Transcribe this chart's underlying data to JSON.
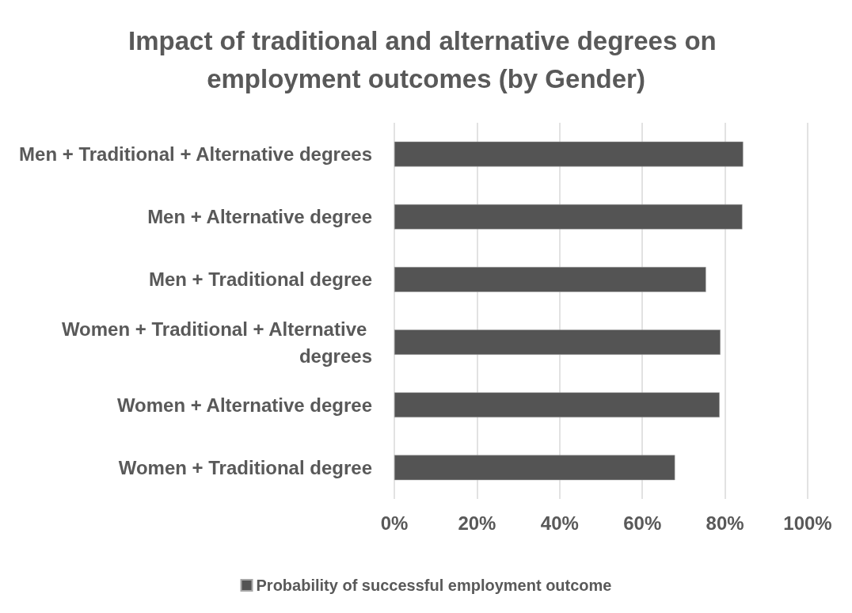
{
  "chart_data": {
    "type": "bar",
    "orientation": "horizontal",
    "title": "Impact of traditional and alternative degrees on employment outcomes (by Gender)",
    "categories": [
      "Men + Traditional + Alternative degrees",
      "Men + Alternative degree",
      "Men + Traditional degree",
      "Women + Traditional + Alternative degrees",
      "Women + Alternative degree",
      "Women + Traditional degree"
    ],
    "series": [
      {
        "name": "Probability of successful employment outcome",
        "color": "#545454",
        "values": [
          84.4,
          84.2,
          75.4,
          78.9,
          78.7,
          67.9
        ]
      }
    ],
    "xlim": [
      0,
      100
    ],
    "xticks": [
      {
        "value": 0,
        "label": "0%"
      },
      {
        "value": 20,
        "label": "20%"
      },
      {
        "value": 40,
        "label": "40%"
      },
      {
        "value": 60,
        "label": "60%"
      },
      {
        "value": 80,
        "label": "80%"
      },
      {
        "value": 100,
        "label": "100%"
      }
    ],
    "grid": "x",
    "legend": "bottom"
  }
}
